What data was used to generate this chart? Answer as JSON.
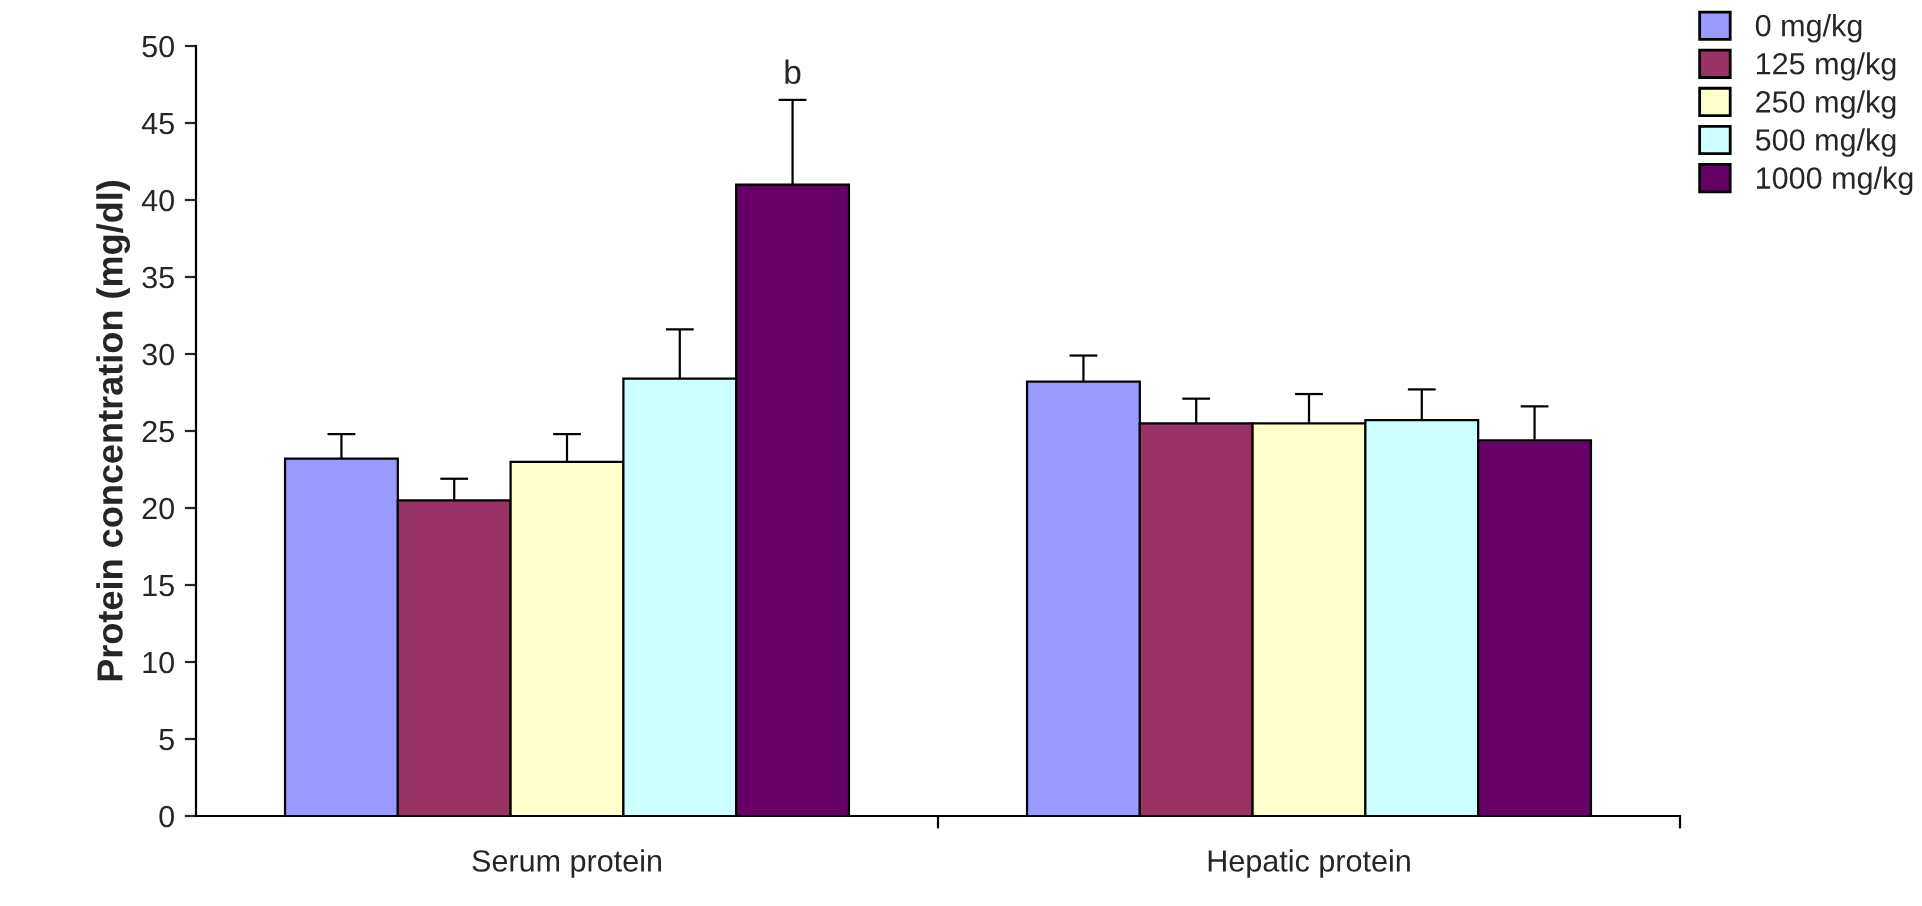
{
  "chart_data": {
    "type": "bar",
    "ylabel": "Protein concentration (mg/dl)",
    "categories": [
      "Serum protein",
      "Hepatic protein"
    ],
    "series": [
      {
        "name": "0 mg/kg",
        "color": "#9999ff",
        "values": [
          23.2,
          28.2
        ],
        "errors": [
          1.6,
          1.7
        ]
      },
      {
        "name": "125 mg/kg",
        "color": "#993366",
        "values": [
          20.5,
          25.5
        ],
        "errors": [
          1.4,
          1.6
        ]
      },
      {
        "name": "250 mg/kg",
        "color": "#ffffcc",
        "values": [
          23.0,
          25.5
        ],
        "errors": [
          1.8,
          1.9
        ]
      },
      {
        "name": "500 mg/kg",
        "color": "#ccffff",
        "values": [
          28.4,
          25.7
        ],
        "errors": [
          3.2,
          2.0
        ]
      },
      {
        "name": "1000 mg/kg",
        "color": "#660066",
        "values": [
          41.0,
          24.4
        ],
        "errors": [
          5.5,
          2.2
        ]
      }
    ],
    "ylim": [
      0,
      50
    ],
    "yticks": [
      0,
      5,
      10,
      15,
      20,
      25,
      30,
      35,
      40,
      45,
      50
    ],
    "grid": false,
    "legend": "top right",
    "annotations": [
      "b"
    ]
  }
}
